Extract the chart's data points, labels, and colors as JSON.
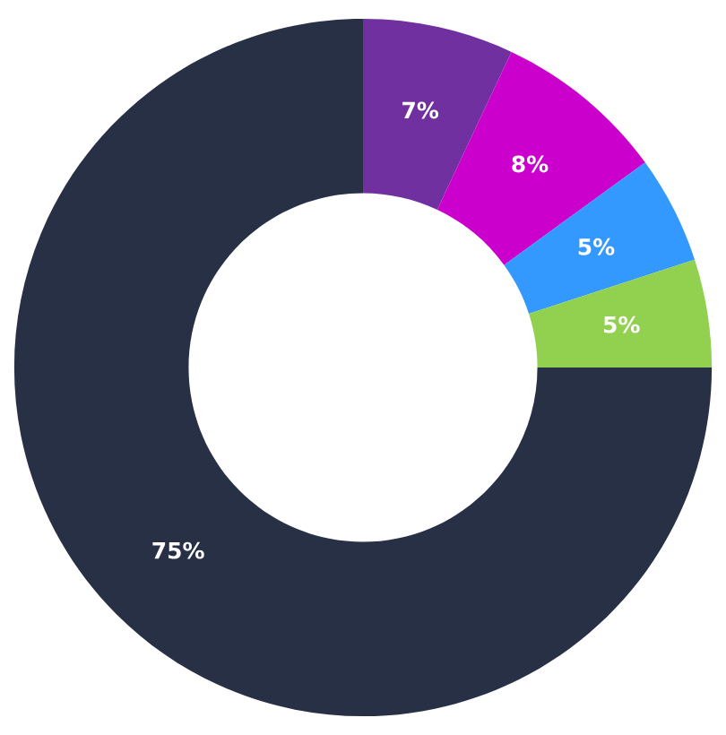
{
  "chart_data": {
    "type": "donut",
    "categories": [
      null,
      null,
      null,
      null,
      null
    ],
    "values": [
      7,
      8,
      5,
      5,
      75
    ],
    "colors": [
      "#7030a0",
      "#cc00cc",
      "#3399ff",
      "#92d050",
      "#283046"
    ],
    "value_labels": [
      "7%",
      "8%",
      "5%",
      "5%",
      "75%"
    ]
  }
}
